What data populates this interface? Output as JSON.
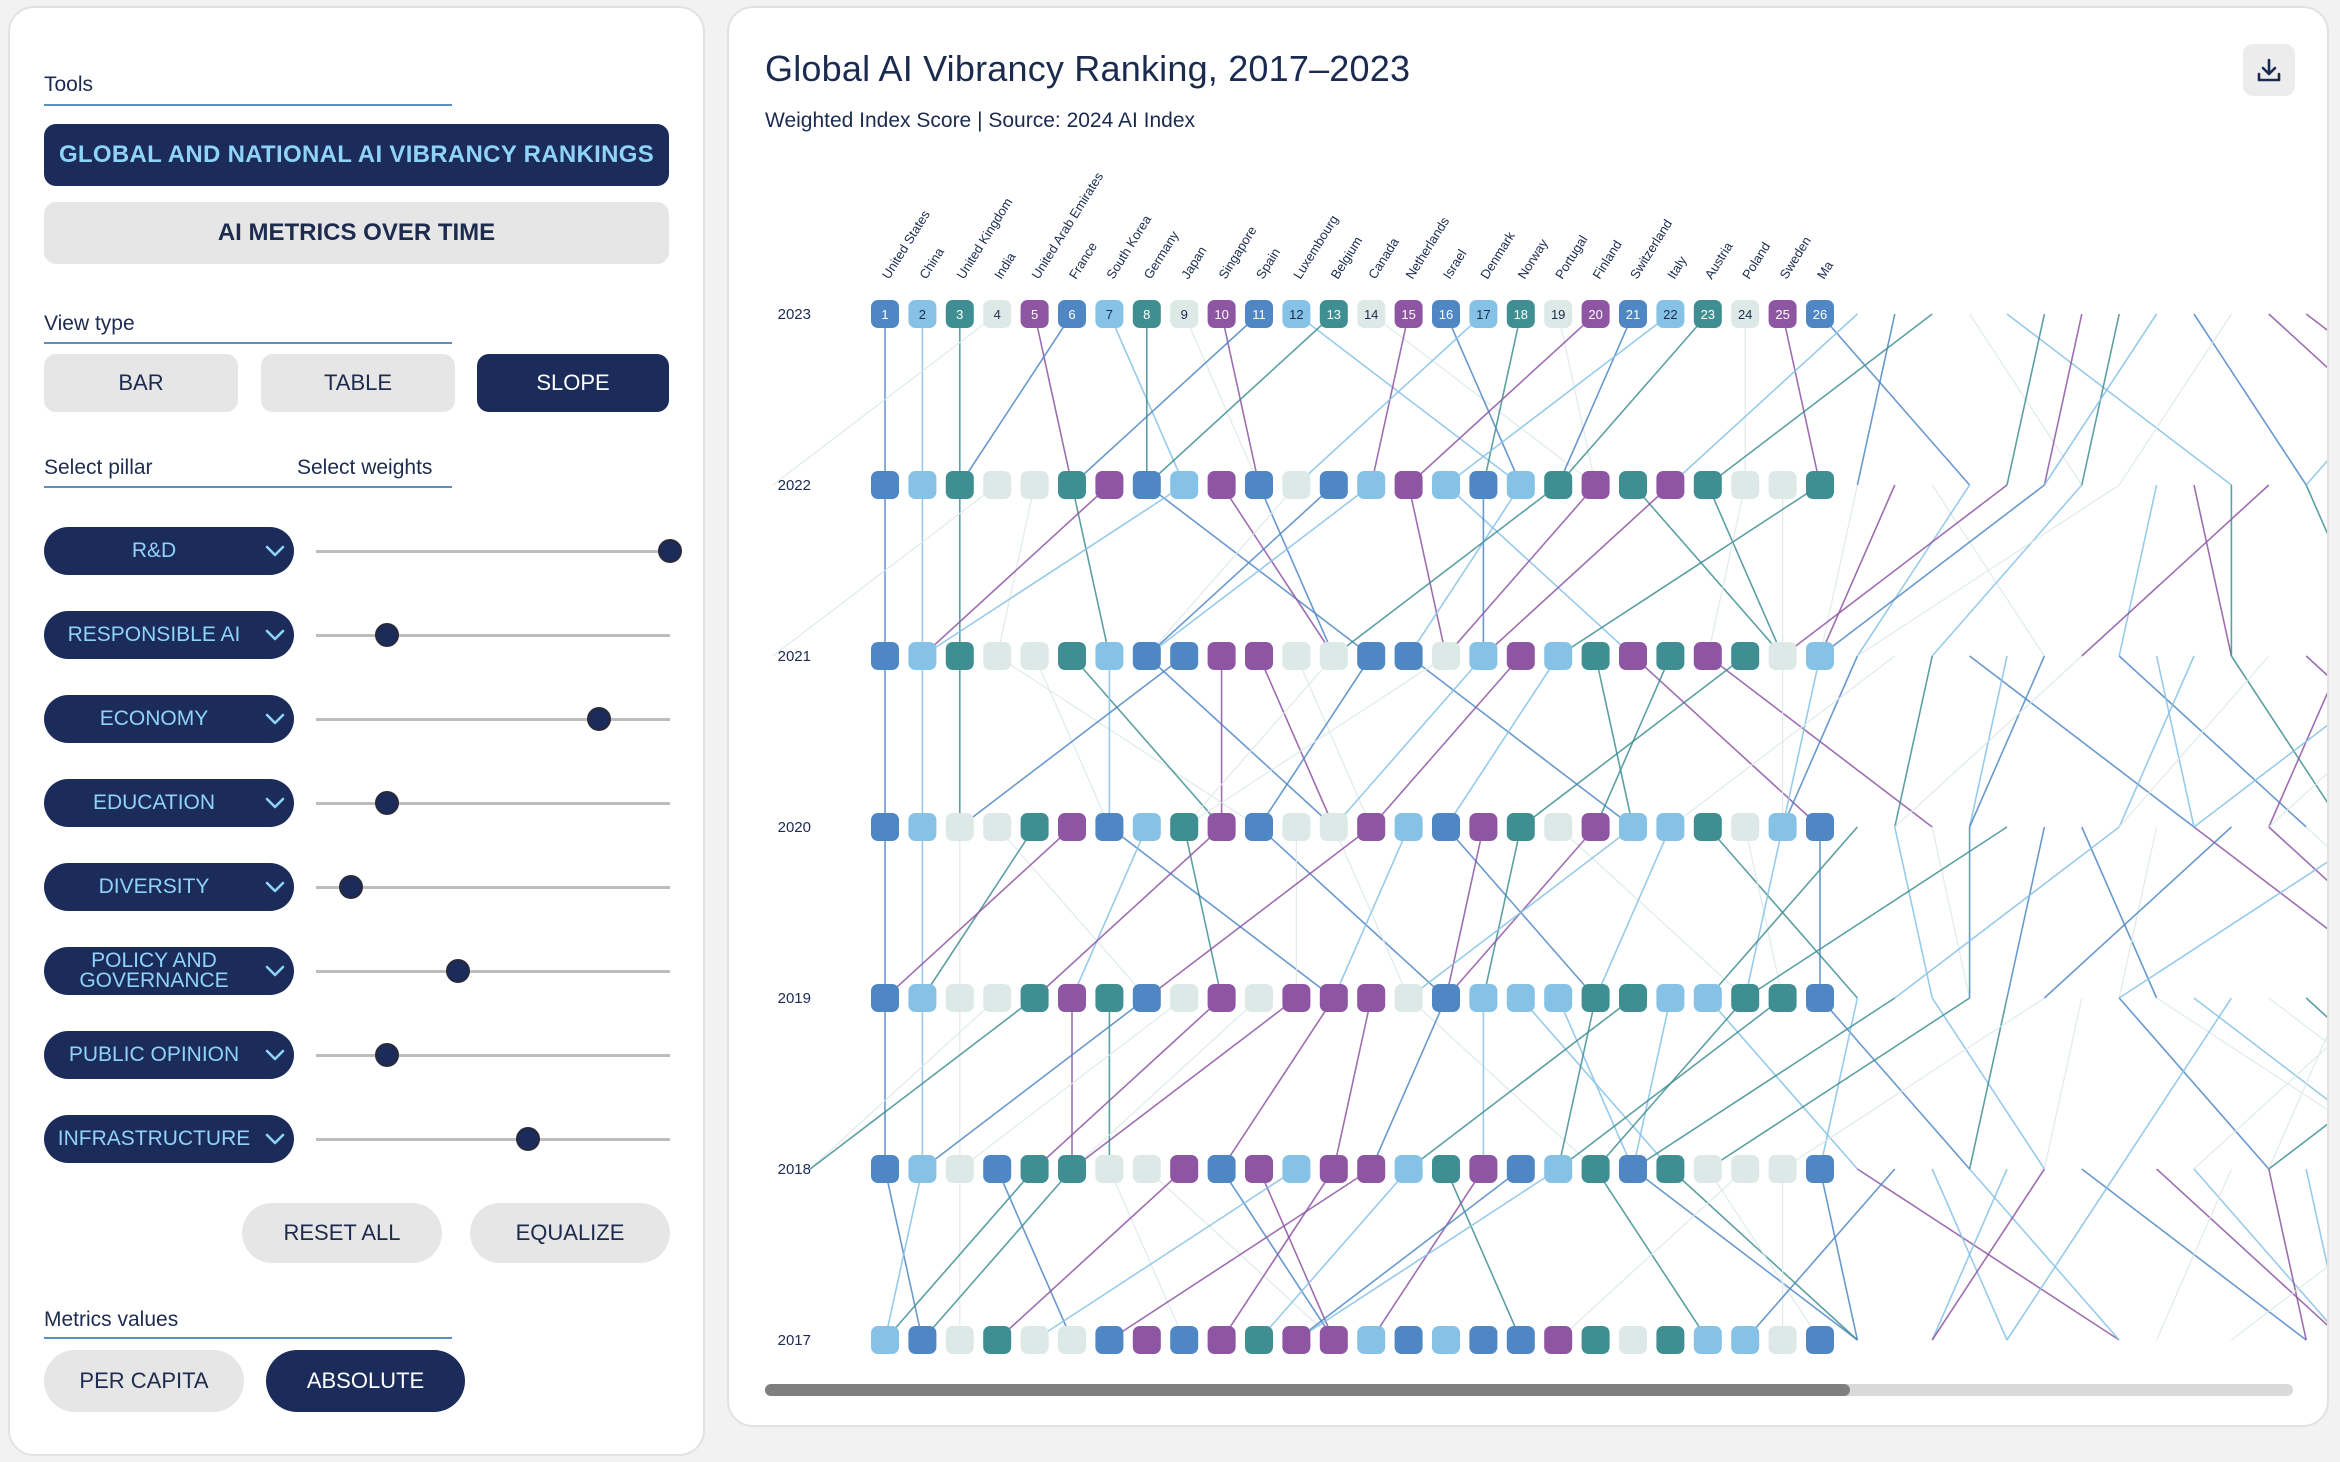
{
  "tools": {
    "label": "Tools",
    "primary_button": "GLOBAL AND NATIONAL AI VIBRANCY RANKINGS",
    "secondary_button": "AI METRICS OVER TIME"
  },
  "view_type": {
    "label": "View type",
    "options": [
      "BAR",
      "TABLE",
      "SLOPE"
    ],
    "selected": "SLOPE"
  },
  "pillar_section": {
    "pillar_label": "Select pillar",
    "weights_label": "Select weights"
  },
  "pillars": [
    {
      "label": "R&D",
      "weight": 1.0
    },
    {
      "label": "RESPONSIBLE AI",
      "weight": 0.2
    },
    {
      "label": "ECONOMY",
      "weight": 0.8
    },
    {
      "label": "EDUCATION",
      "weight": 0.2
    },
    {
      "label": "DIVERSITY",
      "weight": 0.1
    },
    {
      "label": "POLICY AND GOVERNANCE",
      "weight": 0.4
    },
    {
      "label": "PUBLIC OPINION",
      "weight": 0.2
    },
    {
      "label": "INFRASTRUCTURE",
      "weight": 0.6
    }
  ],
  "actions": {
    "reset": "RESET ALL",
    "equalize": "EQUALIZE"
  },
  "metrics": {
    "label": "Metrics values",
    "options": [
      "PER CAPITA",
      "ABSOLUTE"
    ],
    "selected": "ABSOLUTE"
  },
  "chart": {
    "title": "Global AI Vibrancy Ranking, 2017–2023",
    "subtitle": "Weighted Index Score | Source: 2024 AI Index",
    "download_icon": "download-icon",
    "scroll_fraction": 0.71
  },
  "chart_data": {
    "type": "slope",
    "years": [
      "2023",
      "2022",
      "2021",
      "2020",
      "2019",
      "2018",
      "2017"
    ],
    "countries": [
      "United States",
      "China",
      "United Kingdom",
      "India",
      "United Arab Emirates",
      "France",
      "South Korea",
      "Germany",
      "Japan",
      "Singapore",
      "Spain",
      "Luxembourg",
      "Belgium",
      "Canada",
      "Netherlands",
      "Israel",
      "Denmark",
      "Norway",
      "Portugal",
      "Finland",
      "Switzerland",
      "Italy",
      "Austria",
      "Poland",
      "Sweden",
      "Ma"
    ],
    "ranks_2023": [
      1,
      2,
      3,
      4,
      5,
      6,
      7,
      8,
      9,
      10,
      11,
      12,
      13,
      14,
      15,
      16,
      17,
      18,
      19,
      20,
      21,
      22,
      23,
      24,
      25,
      26
    ],
    "colors": {
      "blue": "#4f87c4",
      "light_blue": "#86c2e6",
      "teal": "#3f8f92",
      "purple": "#8e55a2",
      "pale": "#dde9e7"
    },
    "node_colors": [
      [
        "blue",
        "light_blue",
        "teal",
        "pale",
        "purple",
        "blue",
        "light_blue",
        "teal",
        "pale",
        "purple",
        "blue",
        "light_blue",
        "teal",
        "pale",
        "purple",
        "blue",
        "light_blue",
        "teal",
        "pale",
        "purple",
        "blue",
        "light_blue",
        "teal",
        "pale",
        "purple",
        "blue"
      ],
      [
        "blue",
        "light_blue",
        "teal",
        "pale",
        "pale",
        "teal",
        "purple",
        "blue",
        "light_blue",
        "purple",
        "blue",
        "pale",
        "blue",
        "light_blue",
        "purple",
        "light_blue",
        "blue",
        "light_blue",
        "teal",
        "purple",
        "teal",
        "purple",
        "teal",
        "pale",
        "pale",
        "teal"
      ],
      [
        "blue",
        "light_blue",
        "teal",
        "pale",
        "pale",
        "teal",
        "light_blue",
        "blue",
        "blue",
        "purple",
        "purple",
        "pale",
        "pale",
        "blue",
        "blue",
        "pale",
        "light_blue",
        "purple",
        "light_blue",
        "teal",
        "purple",
        "teal",
        "purple",
        "teal",
        "pale",
        "light_blue"
      ],
      [
        "blue",
        "light_blue",
        "pale",
        "pale",
        "teal",
        "purple",
        "blue",
        "light_blue",
        "teal",
        "purple",
        "blue",
        "pale",
        "pale",
        "purple",
        "light_blue",
        "blue",
        "purple",
        "teal",
        "pale",
        "purple",
        "light_blue",
        "light_blue",
        "teal",
        "pale",
        "light_blue",
        "blue"
      ],
      [
        "blue",
        "light_blue",
        "pale",
        "pale",
        "teal",
        "purple",
        "teal",
        "blue",
        "pale",
        "purple",
        "pale",
        "purple",
        "purple",
        "purple",
        "pale",
        "blue",
        "light_blue",
        "light_blue",
        "light_blue",
        "teal",
        "teal",
        "light_blue",
        "light_blue",
        "teal",
        "teal",
        "blue"
      ],
      [
        "blue",
        "light_blue",
        "pale",
        "blue",
        "teal",
        "teal",
        "pale",
        "pale",
        "purple",
        "blue",
        "purple",
        "light_blue",
        "purple",
        "purple",
        "light_blue",
        "teal",
        "purple",
        "blue",
        "light_blue",
        "teal",
        "blue",
        "teal",
        "pale",
        "pale",
        "pale",
        "blue"
      ],
      [
        "light_blue",
        "blue",
        "pale",
        "teal",
        "pale",
        "pale",
        "blue",
        "purple",
        "blue",
        "purple",
        "teal",
        "purple",
        "purple",
        "light_blue",
        "blue",
        "light_blue",
        "blue",
        "blue",
        "purple",
        "teal",
        "pale",
        "teal",
        "light_blue",
        "light_blue",
        "pale",
        "blue"
      ]
    ]
  }
}
